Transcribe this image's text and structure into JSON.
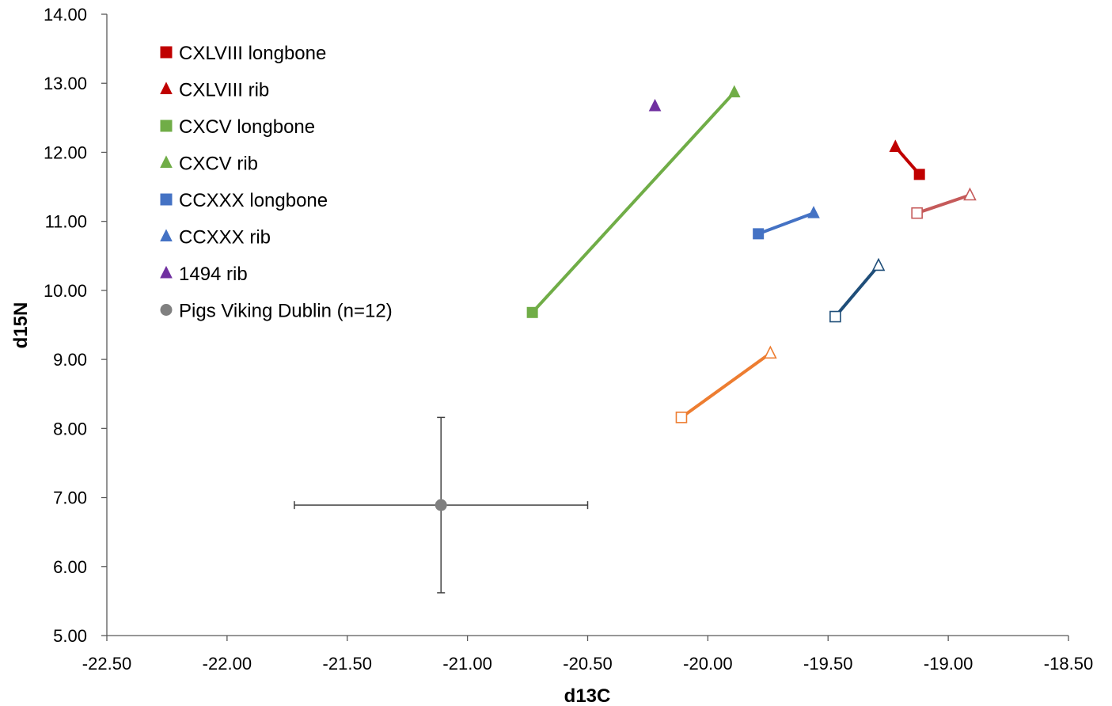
{
  "chart_data": {
    "type": "scatter",
    "xlabel": "d13C",
    "ylabel": "d15N",
    "xlim": [
      -22.5,
      -18.5
    ],
    "ylim": [
      5.0,
      14.0
    ],
    "x_ticks": [
      "-22.50",
      "-22.00",
      "-21.50",
      "-21.00",
      "-20.50",
      "-20.00",
      "-19.50",
      "-19.00",
      "-18.50"
    ],
    "y_ticks": [
      "5.00",
      "6.00",
      "7.00",
      "8.00",
      "9.00",
      "10.00",
      "11.00",
      "12.00",
      "13.00",
      "14.00"
    ],
    "grid": false,
    "legend_position": "top-left",
    "legend": [
      {
        "label": "CXLVIII longbone",
        "marker": "square",
        "color": "#C00000"
      },
      {
        "label": "CXLVIII rib",
        "marker": "triangle",
        "color": "#C00000"
      },
      {
        "label": "CXCV longbone",
        "marker": "square",
        "color": "#70AD47"
      },
      {
        "label": "CXCV rib",
        "marker": "triangle",
        "color": "#70AD47"
      },
      {
        "label": "CCXXX longbone",
        "marker": "square",
        "color": "#4472C4"
      },
      {
        "label": "CCXXX rib",
        "marker": "triangle",
        "color": "#4472C4"
      },
      {
        "label": "1494 rib",
        "marker": "triangle",
        "color": "#7030A0"
      },
      {
        "label": "Pigs Viking Dublin (n=12)",
        "marker": "circle",
        "color": "#808080"
      }
    ],
    "pairs": [
      {
        "color": "#C00000",
        "filled": true,
        "longbone": [
          -19.12,
          11.68
        ],
        "rib": [
          -19.22,
          12.08
        ]
      },
      {
        "color": "#70AD47",
        "filled": true,
        "longbone": [
          -20.73,
          9.68
        ],
        "rib": [
          -19.89,
          12.87
        ]
      },
      {
        "color": "#4472C4",
        "filled": true,
        "longbone": [
          -19.79,
          10.82
        ],
        "rib": [
          -19.56,
          11.12
        ]
      },
      {
        "color": "#C55A5A",
        "filled": false,
        "longbone": [
          -19.13,
          11.12
        ],
        "rib": [
          -18.91,
          11.38
        ]
      },
      {
        "color": "#1F4E79",
        "filled": false,
        "longbone": [
          -19.47,
          9.62
        ],
        "rib": [
          -19.29,
          10.36
        ]
      },
      {
        "color": "#ED7D31",
        "filled": false,
        "longbone": [
          -20.11,
          8.16
        ],
        "rib": [
          -19.74,
          9.09
        ]
      }
    ],
    "singles": [
      {
        "marker": "triangle",
        "color": "#7030A0",
        "filled": true,
        "x": -20.22,
        "y": 12.67
      }
    ],
    "reference": {
      "x": -21.11,
      "y": 6.89,
      "x_err": 0.61,
      "y_err_plus": 1.27,
      "y_err_minus": 1.27,
      "color": "#808080"
    }
  }
}
